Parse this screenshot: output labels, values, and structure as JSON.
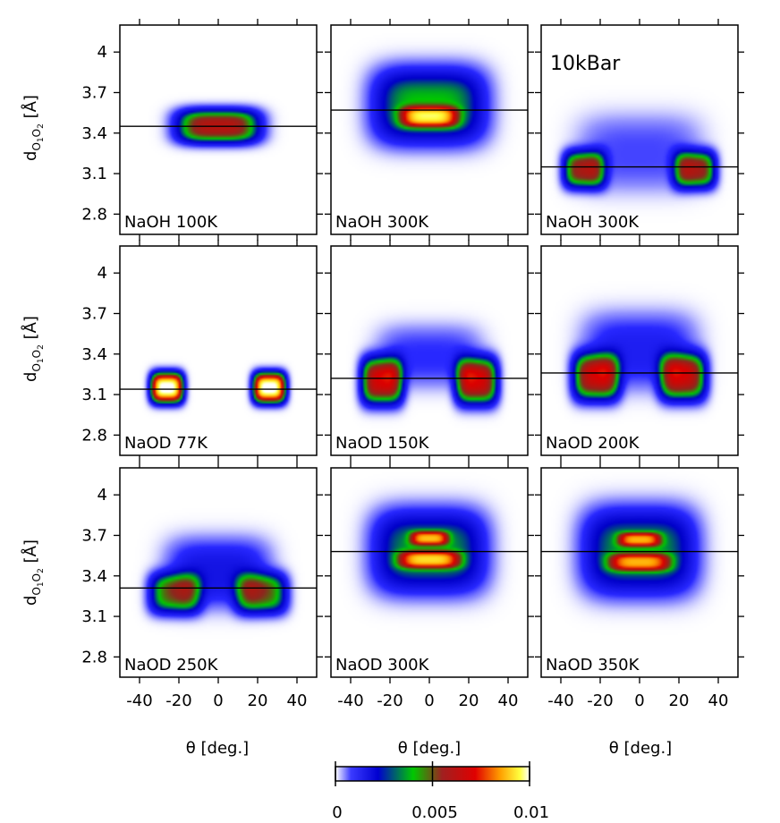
{
  "figure": {
    "ylabel_main": "d",
    "ylabel_sub1": "O",
    "ylabel_sub2": "1",
    "ylabel_sub3": "O",
    "ylabel_sub4": "2",
    "ylabel_unit": " [Å]",
    "xlabel": "θ [deg.]",
    "colorbar": {
      "ticks": [
        "0",
        "0.005",
        "0.01"
      ],
      "range": [
        0,
        0.01
      ],
      "colormap": [
        "#ffffff",
        "#2020ff",
        "#00cc00",
        "#dd0000",
        "#ffff00",
        "#ffffff"
      ]
    }
  },
  "chart_data": [
    {
      "type": "heatmap",
      "label": "NaOH 100K",
      "annotation": "",
      "hline": 3.45,
      "xlim": [
        -50,
        50
      ],
      "ylim": [
        2.65,
        4.2
      ],
      "xticks": [
        -40,
        -20,
        0,
        20,
        40
      ],
      "yticks": [
        "2.8",
        "3.1",
        "3.4",
        "3.7",
        "4"
      ],
      "blobs": [
        {
          "x": 0,
          "y": 3.45,
          "wx": 18,
          "wy": 0.1,
          "peak": 0.0065
        }
      ]
    },
    {
      "type": "heatmap",
      "label": "NaOH 300K",
      "annotation": "",
      "hline": 3.57,
      "xlim": [
        -50,
        50
      ],
      "ylim": [
        2.65,
        4.2
      ],
      "xticks": [
        -40,
        -20,
        0,
        20,
        40
      ],
      "yticks": [
        "2.8",
        "3.1",
        "3.4",
        "3.7",
        "4"
      ],
      "blobs": [
        {
          "x": 0,
          "y": 3.6,
          "wx": 24,
          "wy": 0.22,
          "peak": 0.0045
        },
        {
          "x": 0,
          "y": 3.52,
          "wx": 12,
          "wy": 0.06,
          "peak": 0.0052
        }
      ]
    },
    {
      "type": "heatmap",
      "label": "NaOH 300K",
      "annotation": "10kBar",
      "hline": 3.15,
      "xlim": [
        -50,
        50
      ],
      "ylim": [
        2.65,
        4.2
      ],
      "xticks": [
        -40,
        -20,
        0,
        20,
        40
      ],
      "yticks": [
        "2.8",
        "3.1",
        "3.4",
        "3.7",
        "4"
      ],
      "blobs": [
        {
          "x": -28,
          "y": 3.13,
          "wx": 9,
          "wy": 0.11,
          "peak": 0.0058
        },
        {
          "x": 28,
          "y": 3.13,
          "wx": 9,
          "wy": 0.11,
          "peak": 0.0058
        },
        {
          "x": 0,
          "y": 3.25,
          "wx": 26,
          "wy": 0.22,
          "peak": 0.0012
        }
      ]
    },
    {
      "type": "heatmap",
      "label": "NaOD 77K",
      "annotation": "",
      "hline": 3.14,
      "xlim": [
        -50,
        50
      ],
      "ylim": [
        2.65,
        4.2
      ],
      "xticks": [
        -40,
        -20,
        0,
        20,
        40
      ],
      "yticks": [
        "2.8",
        "3.1",
        "3.4",
        "3.7",
        "4"
      ],
      "blobs": [
        {
          "x": -26,
          "y": 3.15,
          "wx": 7,
          "wy": 0.09,
          "peak": 0.0102
        },
        {
          "x": 26,
          "y": 3.15,
          "wx": 7,
          "wy": 0.09,
          "peak": 0.0102
        }
      ]
    },
    {
      "type": "heatmap",
      "label": "NaOD 150K",
      "annotation": "",
      "hline": 3.22,
      "xlim": [
        -50,
        50
      ],
      "ylim": [
        2.65,
        4.2
      ],
      "xticks": [
        -40,
        -20,
        0,
        20,
        40
      ],
      "yticks": [
        "2.8",
        "3.1",
        "3.4",
        "3.7",
        "4"
      ],
      "blobs": [
        {
          "x": -24,
          "y": 3.2,
          "wx": 9,
          "wy": 0.14,
          "peak": 0.0068
        },
        {
          "x": 24,
          "y": 3.2,
          "wx": 9,
          "wy": 0.14,
          "peak": 0.0068
        },
        {
          "x": 0,
          "y": 3.38,
          "wx": 22,
          "wy": 0.18,
          "peak": 0.0014
        }
      ]
    },
    {
      "type": "heatmap",
      "label": "NaOD 200K",
      "annotation": "",
      "hline": 3.26,
      "xlim": [
        -50,
        50
      ],
      "ylim": [
        2.65,
        4.2
      ],
      "xticks": [
        -40,
        -20,
        0,
        20,
        40
      ],
      "yticks": [
        "2.8",
        "3.1",
        "3.4",
        "3.7",
        "4"
      ],
      "blobs": [
        {
          "x": -22,
          "y": 3.23,
          "wx": 10,
          "wy": 0.14,
          "peak": 0.0062
        },
        {
          "x": 22,
          "y": 3.23,
          "wx": 10,
          "wy": 0.14,
          "peak": 0.0062
        },
        {
          "x": 0,
          "y": 3.42,
          "wx": 24,
          "wy": 0.22,
          "peak": 0.0018
        }
      ]
    },
    {
      "type": "heatmap",
      "label": "NaOD 250K",
      "annotation": "",
      "hline": 3.31,
      "xlim": [
        -50,
        50
      ],
      "ylim": [
        2.65,
        4.2
      ],
      "xticks": [
        -40,
        -20,
        0,
        20,
        40
      ],
      "yticks": [
        "2.8",
        "3.1",
        "3.4",
        "3.7",
        "4"
      ],
      "blobs": [
        {
          "x": -22,
          "y": 3.27,
          "wx": 11,
          "wy": 0.12,
          "peak": 0.0048
        },
        {
          "x": 22,
          "y": 3.27,
          "wx": 11,
          "wy": 0.12,
          "peak": 0.0048
        },
        {
          "x": 0,
          "y": 3.42,
          "wx": 22,
          "wy": 0.2,
          "peak": 0.0022
        }
      ]
    },
    {
      "type": "heatmap",
      "label": "NaOD 300K",
      "annotation": "",
      "hline": 3.58,
      "xlim": [
        -50,
        50
      ],
      "ylim": [
        2.65,
        4.2
      ],
      "xticks": [
        -40,
        -20,
        0,
        20,
        40
      ],
      "yticks": [
        "2.8",
        "3.1",
        "3.4",
        "3.7",
        "4"
      ],
      "blobs": [
        {
          "x": 0,
          "y": 3.58,
          "wx": 24,
          "wy": 0.24,
          "peak": 0.0042
        },
        {
          "x": 0,
          "y": 3.52,
          "wx": 13,
          "wy": 0.05,
          "peak": 0.005
        },
        {
          "x": 0,
          "y": 3.68,
          "wx": 8,
          "wy": 0.04,
          "peak": 0.0048
        }
      ]
    },
    {
      "type": "heatmap",
      "label": "NaOD 350K",
      "annotation": "",
      "hline": 3.58,
      "xlim": [
        -50,
        50
      ],
      "ylim": [
        2.65,
        4.2
      ],
      "xticks": [
        -40,
        -20,
        0,
        20,
        40
      ],
      "yticks": [
        "2.8",
        "3.1",
        "3.4",
        "3.7",
        "4"
      ],
      "blobs": [
        {
          "x": 0,
          "y": 3.58,
          "wx": 24,
          "wy": 0.25,
          "peak": 0.0042
        },
        {
          "x": 0,
          "y": 3.5,
          "wx": 13,
          "wy": 0.05,
          "peak": 0.0046
        },
        {
          "x": 0,
          "y": 3.67,
          "wx": 9,
          "wy": 0.04,
          "peak": 0.0046
        }
      ]
    }
  ]
}
